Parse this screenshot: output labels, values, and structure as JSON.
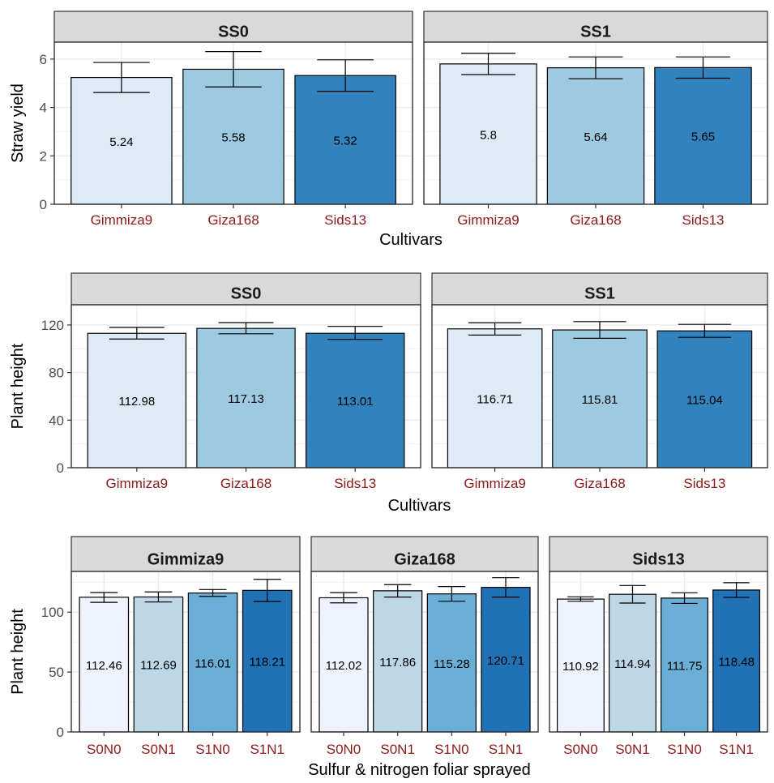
{
  "chart_data": [
    {
      "type": "bar",
      "xlabel": "Cultivars",
      "ylabel": "Straw yield",
      "ylim": [
        0,
        6.7
      ],
      "yticks": [
        0,
        2,
        4,
        6
      ],
      "grid": true,
      "colors": [
        "#DEEBF7",
        "#9ECAE1",
        "#3182BD"
      ],
      "panels": [
        {
          "title": "SS0",
          "categories": [
            "Gimmiza9",
            "Giza168",
            "Sids13"
          ],
          "values": [
            5.24,
            5.58,
            5.32
          ],
          "labels": [
            "5.24",
            "5.58",
            "5.32"
          ],
          "error_low": [
            4.62,
            4.85,
            4.67
          ],
          "error_high": [
            5.86,
            6.31,
            5.97
          ]
        },
        {
          "title": "SS1",
          "categories": [
            "Gimmiza9",
            "Giza168",
            "Sids13"
          ],
          "values": [
            5.8,
            5.64,
            5.65
          ],
          "labels": [
            "5.8",
            "5.64",
            "5.65"
          ],
          "error_low": [
            5.36,
            5.19,
            5.21
          ],
          "error_high": [
            6.24,
            6.09,
            6.09
          ]
        }
      ]
    },
    {
      "type": "bar",
      "xlabel": "Cultivars",
      "ylabel": "Plant height",
      "ylim": [
        0,
        137
      ],
      "yticks": [
        0,
        40,
        80,
        120
      ],
      "grid": true,
      "colors": [
        "#DEEBF7",
        "#9ECAE1",
        "#3182BD"
      ],
      "panels": [
        {
          "title": "SS0",
          "categories": [
            "Gimmiza9",
            "Giza168",
            "Sids13"
          ],
          "values": [
            112.98,
            117.13,
            113.01
          ],
          "labels": [
            "112.98",
            "117.13",
            "113.01"
          ],
          "error_low": [
            108.2,
            112.6,
            107.9
          ],
          "error_high": [
            118.0,
            122.0,
            118.8
          ]
        },
        {
          "title": "SS1",
          "categories": [
            "Gimmiza9",
            "Giza168",
            "Sids13"
          ],
          "values": [
            116.71,
            115.81,
            115.04
          ],
          "labels": [
            "116.71",
            "115.81",
            "115.04"
          ],
          "error_low": [
            111.5,
            108.8,
            109.6
          ],
          "error_high": [
            121.9,
            122.8,
            120.5
          ]
        }
      ]
    },
    {
      "type": "bar",
      "xlabel": "Sulfur & nitrogen foliar sprayed",
      "ylabel": "Plant height",
      "ylim": [
        0,
        134
      ],
      "yticks": [
        0,
        50,
        100
      ],
      "grid": true,
      "colors": [
        "#EFF3FF",
        "#BDD7E7",
        "#6BAED6",
        "#2171B5"
      ],
      "panels": [
        {
          "title": "Gimmiza9",
          "categories": [
            "S0N0",
            "S0N1",
            "S1N0",
            "S1N1"
          ],
          "values": [
            112.46,
            112.69,
            116.01,
            118.21
          ],
          "labels": [
            "112.46",
            "112.69",
            "116.01",
            "118.21"
          ],
          "error_low": [
            108.2,
            108.5,
            113.2,
            108.9
          ],
          "error_high": [
            116.4,
            116.9,
            118.9,
            127.4
          ]
        },
        {
          "title": "Giza168",
          "categories": [
            "S0N0",
            "S0N1",
            "S1N0",
            "S1N1"
          ],
          "values": [
            112.02,
            117.86,
            115.28,
            120.71
          ],
          "labels": [
            "112.02",
            "117.86",
            "115.28",
            "120.71"
          ],
          "error_low": [
            107.8,
            112.6,
            109.1,
            112.6
          ],
          "error_high": [
            116.3,
            123.0,
            121.4,
            128.8
          ]
        },
        {
          "title": "Sids13",
          "categories": [
            "S0N0",
            "S0N1",
            "S1N0",
            "S1N1"
          ],
          "values": [
            110.92,
            114.94,
            111.75,
            118.48
          ],
          "labels": [
            "110.92",
            "114.94",
            "111.75",
            "118.48"
          ],
          "error_low": [
            109.1,
            107.6,
            107.3,
            112.4
          ],
          "error_high": [
            112.8,
            122.3,
            116.2,
            124.6
          ]
        }
      ]
    }
  ]
}
